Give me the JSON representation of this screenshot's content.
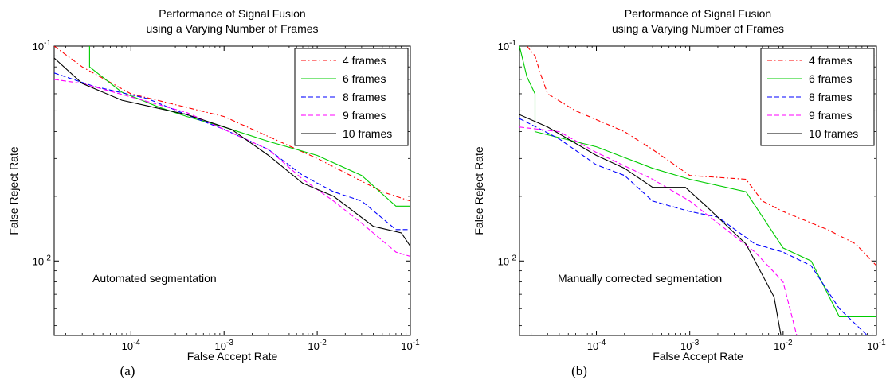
{
  "chart_data": [
    {
      "type": "line",
      "title": "Performance of Signal Fusion",
      "subtitle": "using a Varying Number of Frames",
      "xlabel": "False Accept Rate",
      "ylabel": "False Reject Rate",
      "x_scale": "log",
      "y_scale": "log",
      "xlim": [
        1.5e-05,
        0.1
      ],
      "ylim": [
        0.0045,
        0.1
      ],
      "x_ticks": [
        {
          "value": 0.0001,
          "label": "10^-4"
        },
        {
          "value": 0.001,
          "label": "10^-3"
        },
        {
          "value": 0.01,
          "label": "10^-2"
        },
        {
          "value": 0.1,
          "label": "10^-1"
        }
      ],
      "y_ticks": [
        {
          "value": 0.01,
          "label": "10^-2"
        },
        {
          "value": 0.1,
          "label": "10^-1"
        }
      ],
      "grid": false,
      "legend": "top-right",
      "annotation": "Automated segmentation",
      "caption": "(a)",
      "series": [
        {
          "name": "4 frames",
          "color": "#ff0000",
          "dash": "dashdot",
          "x": [
            1.5e-05,
            3e-05,
            0.0001,
            0.001,
            0.01,
            0.05,
            0.1
          ],
          "y": [
            0.1,
            0.08,
            0.06,
            0.047,
            0.03,
            0.021,
            0.019
          ]
        },
        {
          "name": "6 frames",
          "color": "#00cc00",
          "dash": "solid",
          "x": [
            3.6e-05,
            3.6e-05,
            8e-05,
            0.0002,
            0.0004,
            0.001,
            0.003,
            0.01,
            0.03,
            0.07,
            0.1
          ],
          "y": [
            0.1,
            0.08,
            0.061,
            0.052,
            0.047,
            0.042,
            0.036,
            0.031,
            0.025,
            0.018,
            0.018
          ]
        },
        {
          "name": "8 frames",
          "color": "#0000ff",
          "dash": "dashed",
          "x": [
            1.5e-05,
            4e-05,
            0.00015,
            0.0005,
            0.001,
            0.003,
            0.007,
            0.015,
            0.03,
            0.07,
            0.1
          ],
          "y": [
            0.075,
            0.065,
            0.057,
            0.046,
            0.041,
            0.033,
            0.025,
            0.021,
            0.019,
            0.014,
            0.014
          ]
        },
        {
          "name": "9 frames",
          "color": "#ff00ff",
          "dash": "dashed",
          "x": [
            1.5e-05,
            3e-05,
            0.0001,
            0.0004,
            0.001,
            0.003,
            0.007,
            0.015,
            0.03,
            0.07,
            0.1
          ],
          "y": [
            0.07,
            0.067,
            0.058,
            0.049,
            0.041,
            0.033,
            0.024,
            0.019,
            0.015,
            0.011,
            0.0105
          ]
        },
        {
          "name": "10 frames",
          "color": "#000000",
          "dash": "solid",
          "x": [
            1.5e-05,
            3e-05,
            8e-05,
            0.0004,
            0.0012,
            0.003,
            0.007,
            0.015,
            0.04,
            0.08,
            0.1
          ],
          "y": [
            0.088,
            0.067,
            0.056,
            0.048,
            0.041,
            0.031,
            0.023,
            0.02,
            0.0145,
            0.0135,
            0.0117
          ]
        }
      ]
    },
    {
      "type": "line",
      "title": "Performance of Signal Fusion",
      "subtitle": "using a Varying Number of Frames",
      "xlabel": "False Accept Rate",
      "ylabel": "False Reject Rate",
      "x_scale": "log",
      "y_scale": "log",
      "xlim": [
        1.5e-05,
        0.1
      ],
      "ylim": [
        0.0045,
        0.1
      ],
      "x_ticks": [
        {
          "value": 0.0001,
          "label": "10^-4"
        },
        {
          "value": 0.001,
          "label": "10^-3"
        },
        {
          "value": 0.01,
          "label": "10^-2"
        },
        {
          "value": 0.1,
          "label": "10^-1"
        }
      ],
      "y_ticks": [
        {
          "value": 0.01,
          "label": "10^-2"
        },
        {
          "value": 0.1,
          "label": "10^-1"
        }
      ],
      "grid": false,
      "legend": "top-right",
      "annotation": "Manually corrected segmentation",
      "caption": "(b)",
      "series": [
        {
          "name": "4 frames",
          "color": "#ff0000",
          "dash": "dashdot",
          "x": [
            1.8e-05,
            2.2e-05,
            2.5e-05,
            3e-05,
            6e-05,
            0.0002,
            0.0004,
            0.001,
            0.004,
            0.006,
            0.01,
            0.03,
            0.06,
            0.1
          ],
          "y": [
            0.1,
            0.09,
            0.075,
            0.06,
            0.05,
            0.04,
            0.033,
            0.025,
            0.024,
            0.019,
            0.017,
            0.014,
            0.012,
            0.0095
          ]
        },
        {
          "name": "6 frames",
          "color": "#00cc00",
          "dash": "solid",
          "x": [
            1.5e-05,
            1.8e-05,
            2.2e-05,
            2.2e-05,
            0.0001,
            0.0004,
            0.001,
            0.004,
            0.01,
            0.02,
            0.04,
            0.1
          ],
          "y": [
            0.1,
            0.072,
            0.06,
            0.04,
            0.034,
            0.027,
            0.024,
            0.021,
            0.0115,
            0.01,
            0.0055,
            0.0055
          ]
        },
        {
          "name": "8 frames",
          "color": "#0000ff",
          "dash": "dashed",
          "x": [
            1.5e-05,
            4e-05,
            0.0001,
            0.0002,
            0.0004,
            0.001,
            0.002,
            0.005,
            0.01,
            0.02,
            0.04,
            0.08
          ],
          "y": [
            0.046,
            0.037,
            0.028,
            0.025,
            0.019,
            0.017,
            0.016,
            0.012,
            0.011,
            0.0095,
            0.006,
            0.0045
          ]
        },
        {
          "name": "9 frames",
          "color": "#ff00ff",
          "dash": "dashed",
          "x": [
            1.5e-05,
            4e-05,
            0.0001,
            0.0004,
            0.001,
            0.002,
            0.005,
            0.01,
            0.014
          ],
          "y": [
            0.042,
            0.04,
            0.032,
            0.024,
            0.019,
            0.015,
            0.011,
            0.008,
            0.0045
          ]
        },
        {
          "name": "10 frames",
          "color": "#000000",
          "dash": "solid",
          "x": [
            1.5e-05,
            3e-05,
            0.0001,
            0.0002,
            0.0004,
            0.0009,
            0.0015,
            0.004,
            0.008,
            0.0095
          ],
          "y": [
            0.048,
            0.042,
            0.031,
            0.027,
            0.022,
            0.022,
            0.018,
            0.012,
            0.0068,
            0.0045
          ]
        }
      ]
    }
  ]
}
